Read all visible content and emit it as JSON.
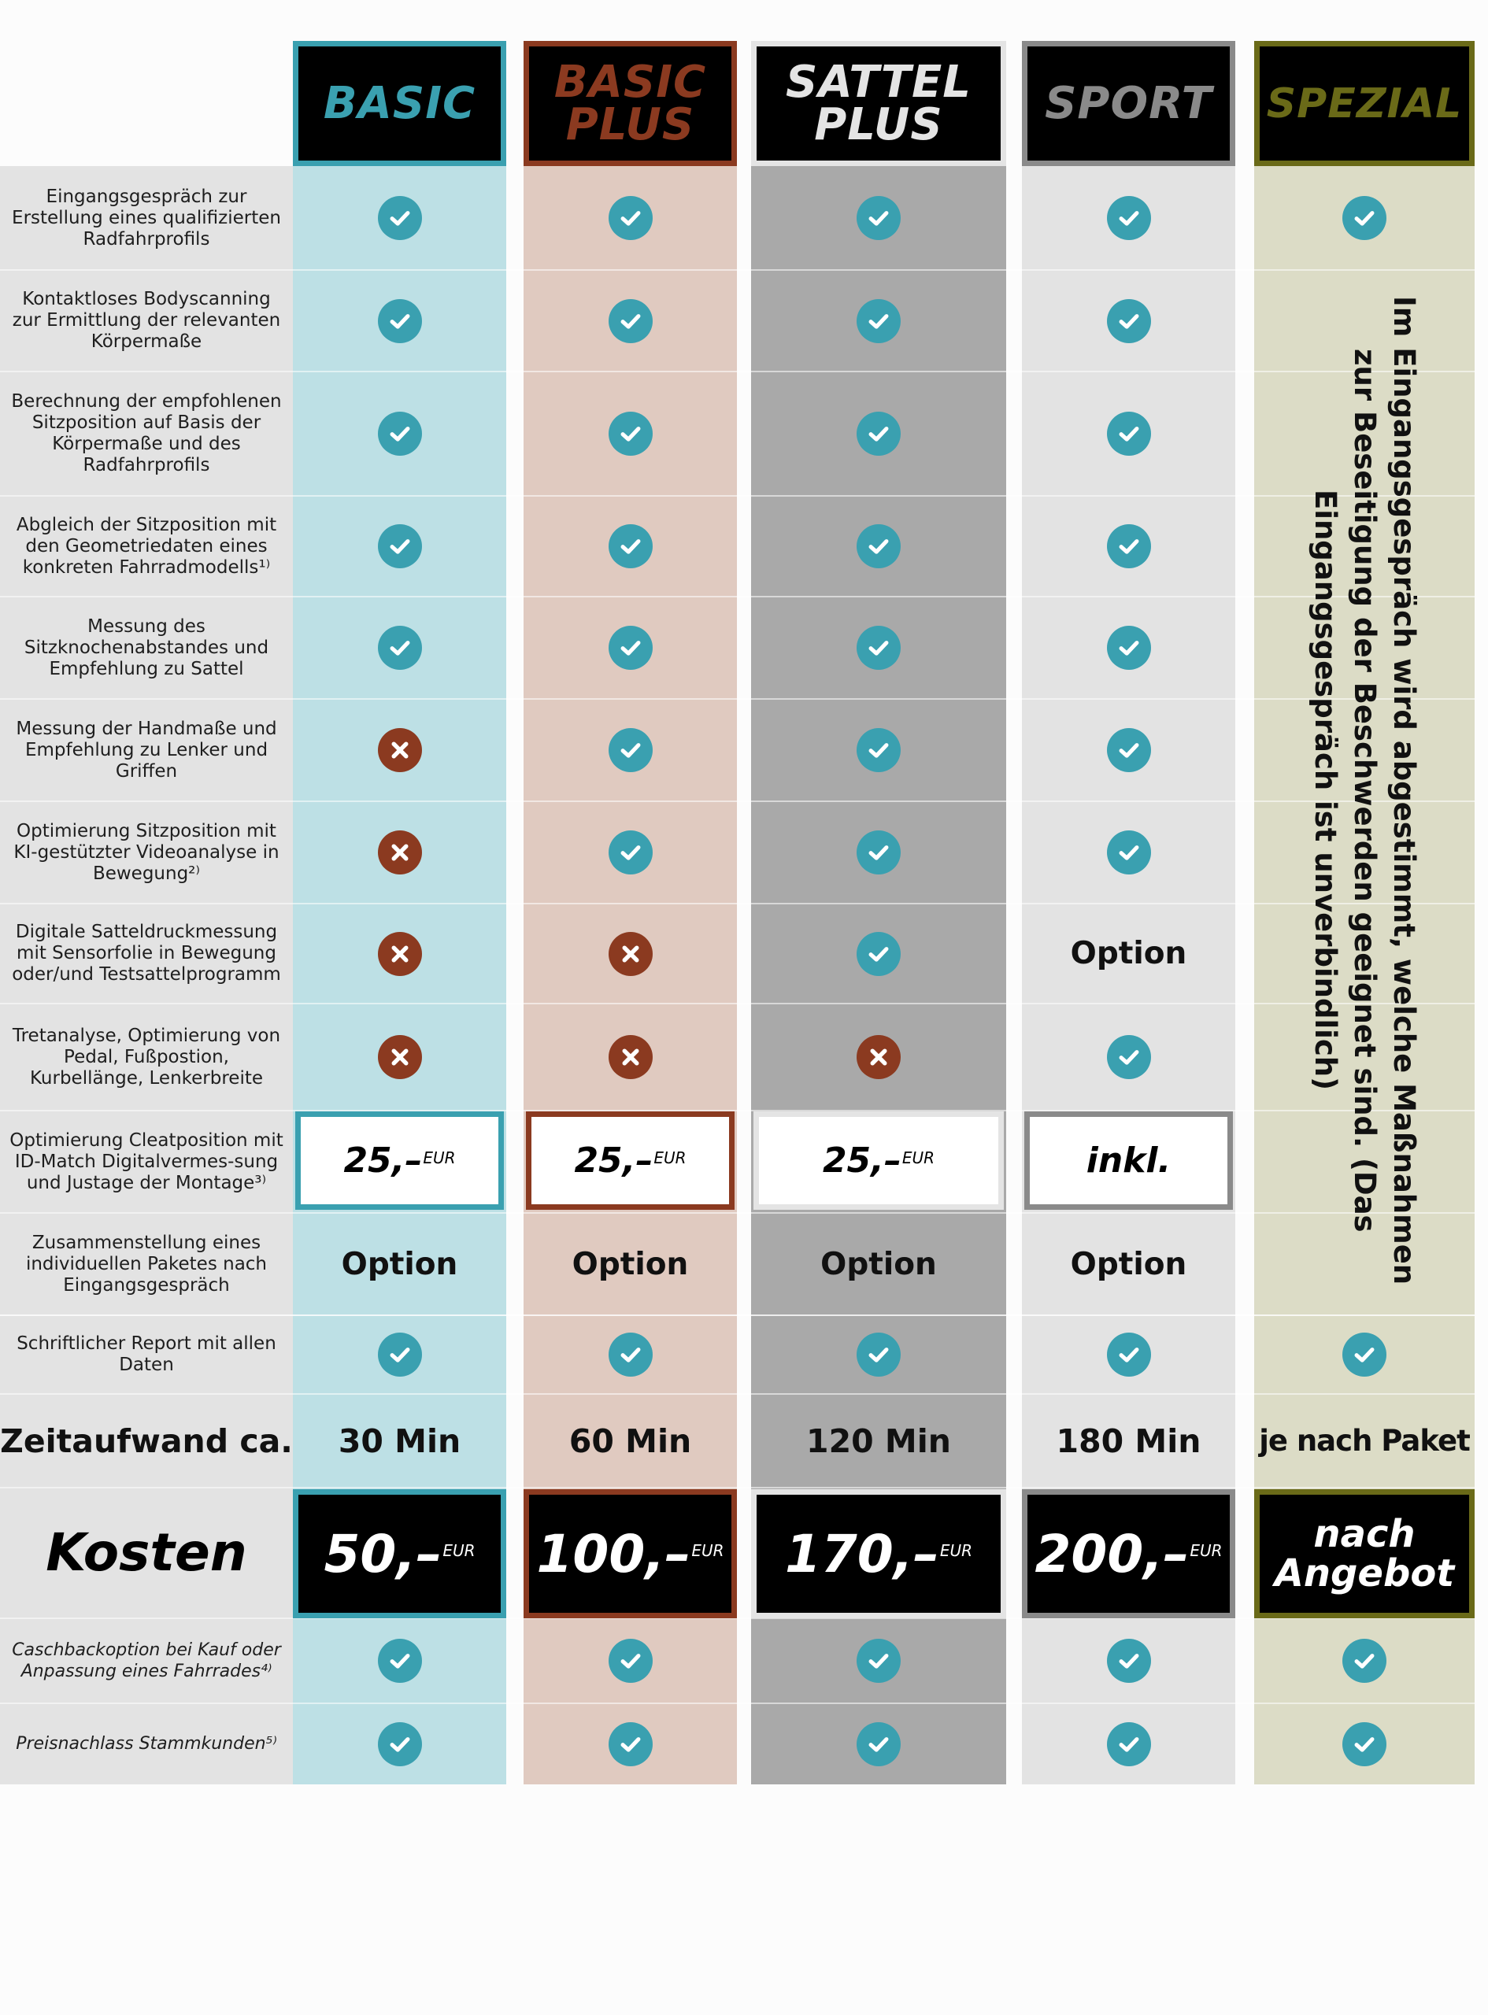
{
  "colors": {
    "basic": "#3aa0b0",
    "basic_plus": "#8b3a20",
    "sattel_plus": "#e4e4e4",
    "sport": "#8a8a8a",
    "spezial": "#6a6a18",
    "check": "#3aa0b0",
    "cross": "#8b3a20"
  },
  "packages": [
    {
      "id": "basic",
      "name_line1": "BASIC",
      "name_line2": ""
    },
    {
      "id": "basic_plus",
      "name_line1": "BASIC",
      "name_line2": "PLUS"
    },
    {
      "id": "sattel_plus",
      "name_line1": "SATTEL",
      "name_line2": "PLUS"
    },
    {
      "id": "sport",
      "name_line1": "SPORT",
      "name_line2": ""
    },
    {
      "id": "spezial",
      "name_line1": "SPEZIAL",
      "name_line2": ""
    }
  ],
  "features": [
    "Eingangsgespräch zur Erstellung eines qualifizierten Radfahrprofils",
    "Kontaktloses Bodyscanning zur Ermittlung der relevanten Körpermaße",
    "Berechnung der empfohlenen Sitzposition auf Basis der Körpermaße und des Radfahrprofils",
    "Abgleich der Sitzposition mit den Geometriedaten eines konkreten Fahrradmodells¹⁾",
    "Messung des Sitzknochenabstandes und Empfehlung zu Sattel",
    "Messung der Handmaße und Empfehlung zu Lenker und Griffen",
    "Optimierung Sitzposition mit KI-gestützter Videoanalyse in Bewegung²⁾",
    "Digitale Satteldruckmessung mit Sensorfolie in Bewegung oder/und Testsattelprogramm",
    "Tretanalyse, Optimierung von Pedal, Fußpostion, Kurbellänge, Lenkerbreite",
    "Optimierung Cleatposition mit ID-Match Digitalvermes-sung und Justage der Montage³⁾",
    "Zusammenstellung eines individuellen Paketes nach Eingangsgespräch",
    "Schriftlicher Report mit allen Daten"
  ],
  "option_label": "Option",
  "cleat": {
    "basic": "25,–",
    "basic_plus": "25,–",
    "sattel_plus": "25,–",
    "sport": "inkl.",
    "currency": "EUR"
  },
  "spezial_note": "Im Eingangsgespräch wird abgestimmt, welche Maßnahmen zur Beseitigung der Beschwerden geeignet sind. (Das Eingangsgespräch ist unverbindlich)",
  "time_row": {
    "label": "Zeitaufwand ca.",
    "values": [
      "30 Min",
      "60 Min",
      "120 Min",
      "180 Min",
      "je nach Paket"
    ]
  },
  "cost_row": {
    "label": "Kosten",
    "values": [
      "50,–",
      "100,–",
      "170,–",
      "200,–"
    ],
    "currency": "EUR",
    "spezial_line1": "nach",
    "spezial_line2": "Angebot"
  },
  "extras": [
    "Caschbackoption bei Kauf oder Anpassung eines Fahrrades⁴⁾",
    "Preisnachlass Stammkunden⁵⁾"
  ]
}
